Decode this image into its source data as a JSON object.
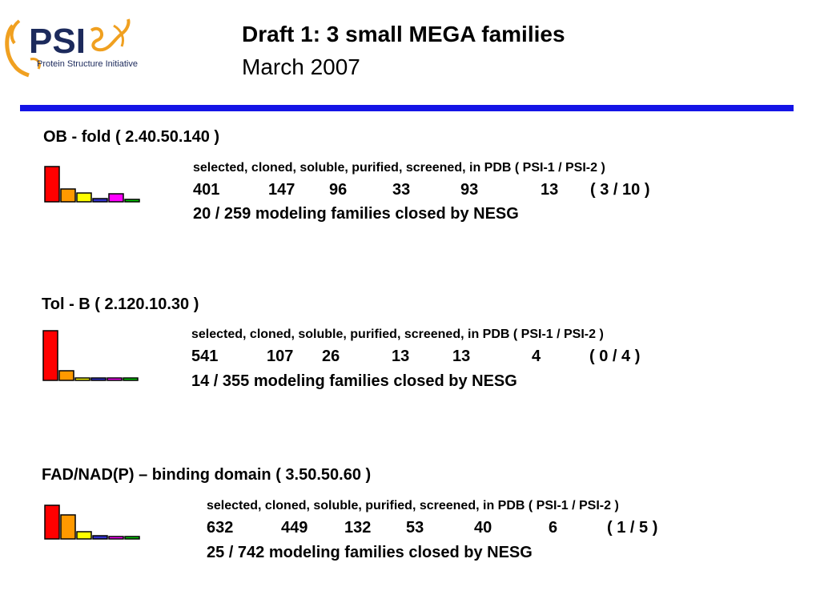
{
  "logo": {
    "mark": "PSI",
    "subtitle": "Protein Structure Initiative"
  },
  "header": {
    "title": "Draft 1: 3 small MEGA families",
    "subtitle": "March 2007"
  },
  "legend": "selected, cloned, soluble, purified, screened, in PDB ( PSI-1 / PSI-2 )",
  "families": [
    {
      "name": "OB - fold  ( 2.40.50.140 )",
      "counts": [
        "401",
        "147",
        "96",
        "33",
        "93",
        "13",
        "( 3 / 10 )"
      ],
      "closed": "20 / 259 modeling families closed by NESG",
      "chart_values": [
        401,
        147,
        96,
        33,
        93,
        13
      ]
    },
    {
      "name": "Tol - B  ( 2.120.10.30 )",
      "counts": [
        "541",
        "107",
        "26",
        "13",
        "13",
        "4",
        "( 0 / 4 )"
      ],
      "closed": "14 / 355 modeling families closed by NESG",
      "chart_values": [
        541,
        107,
        26,
        13,
        13,
        4
      ]
    },
    {
      "name": "FAD/NAD(P) – binding domain  ( 3.50.50.60 )",
      "counts": [
        "632",
        "449",
        "132",
        "53",
        "40",
        "6",
        "( 1 / 5 )"
      ],
      "closed": "25 / 742 modeling families closed by NESG",
      "chart_values": [
        632,
        449,
        132,
        53,
        40,
        6
      ]
    }
  ],
  "bar_colors": [
    "#ff0000",
    "#ff9900",
    "#ffff00",
    "#3333cc",
    "#ff00ff",
    "#00cc00"
  ]
}
